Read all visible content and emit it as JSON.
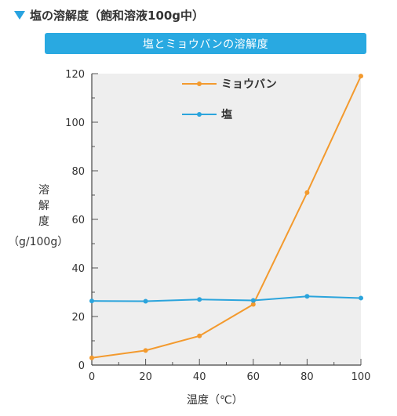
{
  "header": {
    "icon": "triangle-down-icon",
    "title": "塩の溶解度（飽和溶液100g中）"
  },
  "banner": {
    "title": "塩とミョウバンの溶解度"
  },
  "chart_data": {
    "type": "line",
    "xlabel": "温度（℃）",
    "ylabel": "溶解度",
    "yunit": "（g/100g）",
    "x": [
      0,
      20,
      40,
      60,
      80,
      100
    ],
    "xticks": [
      "0",
      "20",
      "40",
      "60",
      "80",
      "100"
    ],
    "yticks": [
      "0",
      "20",
      "40",
      "60",
      "80",
      "100",
      "120"
    ],
    "xlim": [
      0,
      100
    ],
    "ylim": [
      0,
      120
    ],
    "grid": false,
    "legend_position": "top-center",
    "series": [
      {
        "name": "ミョウバン",
        "color": "#f39a2e",
        "values": [
          3,
          6,
          12,
          25,
          71,
          119
        ]
      },
      {
        "name": "塩",
        "color": "#2ba4dc",
        "values": [
          26.4,
          26.3,
          27.0,
          26.6,
          28.3,
          27.6
        ]
      }
    ]
  }
}
